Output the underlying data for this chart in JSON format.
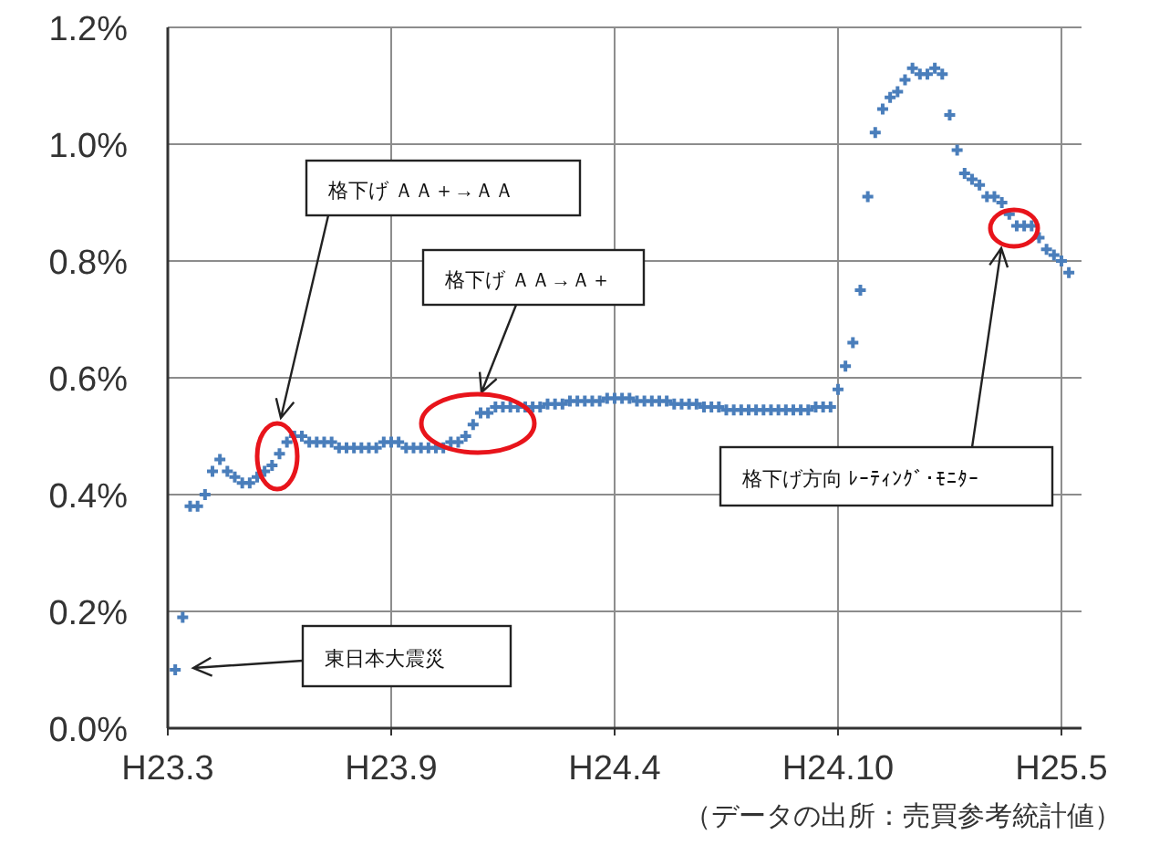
{
  "chart_data": {
    "type": "scatter",
    "marker": "cross",
    "grid": true,
    "categories": [
      "H23.3",
      null,
      null,
      null,
      null,
      null,
      null,
      null,
      null,
      null,
      null,
      null,
      null,
      null,
      null,
      null,
      null,
      null,
      null,
      null,
      null,
      null,
      null,
      null,
      null,
      null,
      null,
      null,
      null,
      null,
      "H23.9",
      null,
      null,
      null,
      null,
      null,
      null,
      null,
      null,
      null,
      null,
      null,
      null,
      null,
      null,
      null,
      null,
      null,
      null,
      null,
      null,
      null,
      null,
      null,
      null,
      null,
      null,
      null,
      null,
      null,
      "H24.4",
      null,
      null,
      null,
      null,
      null,
      null,
      null,
      null,
      null,
      null,
      null,
      null,
      null,
      null,
      null,
      null,
      null,
      null,
      null,
      null,
      null,
      null,
      null,
      null,
      null,
      null,
      null,
      null,
      null,
      "H24.10",
      null,
      null,
      null,
      null,
      null,
      null,
      null,
      null,
      null,
      null,
      null,
      null,
      null,
      null,
      null,
      null,
      null,
      null,
      null,
      null,
      null,
      null,
      null,
      null,
      null,
      null,
      null,
      null,
      null,
      "H25.5",
      null,
      null
    ],
    "ylim": [
      0,
      1.2
    ],
    "yticks": [
      {
        "value": 0,
        "label": "0.0%"
      },
      {
        "value": 0.2,
        "label": "0.2%"
      },
      {
        "value": 0.4,
        "label": "0.4%"
      },
      {
        "value": 0.6,
        "label": "0.6%"
      },
      {
        "value": 0.8,
        "label": "0.8%"
      },
      {
        "value": 1.0,
        "label": "1.0%"
      },
      {
        "value": 1.2,
        "label": "1.2%"
      }
    ],
    "series": [
      {
        "color": "#4a7ebb",
        "values": [
          null,
          0.1,
          0.19,
          0.38,
          0.38,
          0.4,
          0.44,
          0.46,
          0.44,
          0.43,
          0.42,
          0.42,
          0.43,
          0.44,
          0.45,
          0.47,
          0.49,
          0.5,
          0.5,
          0.49,
          0.49,
          0.49,
          0.49,
          0.48,
          0.48,
          0.48,
          0.48,
          0.48,
          0.48,
          0.49,
          0.49,
          0.49,
          0.48,
          0.48,
          0.48,
          0.48,
          0.48,
          0.48,
          0.49,
          0.49,
          0.5,
          0.52,
          0.54,
          0.54,
          0.55,
          0.55,
          0.55,
          0.55,
          0.55,
          0.55,
          0.55,
          0.555,
          0.555,
          0.555,
          0.56,
          0.56,
          0.56,
          0.56,
          0.56,
          0.565,
          0.565,
          0.565,
          0.565,
          0.56,
          0.56,
          0.56,
          0.56,
          0.56,
          0.555,
          0.555,
          0.555,
          0.555,
          0.55,
          0.55,
          0.55,
          0.545,
          0.545,
          0.545,
          0.545,
          0.545,
          0.545,
          0.545,
          0.545,
          0.545,
          0.545,
          0.545,
          0.545,
          0.55,
          0.55,
          0.55,
          0.58,
          0.62,
          0.66,
          0.75,
          0.91,
          1.02,
          1.06,
          1.08,
          1.09,
          1.11,
          1.13,
          1.12,
          1.12,
          1.13,
          1.12,
          1.05,
          0.99,
          0.95,
          0.94,
          0.93,
          0.91,
          0.91,
          0.9,
          0.88,
          0.86,
          0.86,
          0.86,
          0.84,
          0.82,
          0.81,
          0.8,
          0.78,
          null
        ]
      }
    ],
    "annotations": [
      "格下げ ＡＡ＋→ＡＡ",
      "格下げ ＡＡ→Ａ＋",
      "格下げ方向 ﾚｰﾃｨﾝｸﾞ･ﾓﾆﾀｰ",
      "東日本大震災",
      "（データの出所：売買参考統計値）"
    ]
  }
}
